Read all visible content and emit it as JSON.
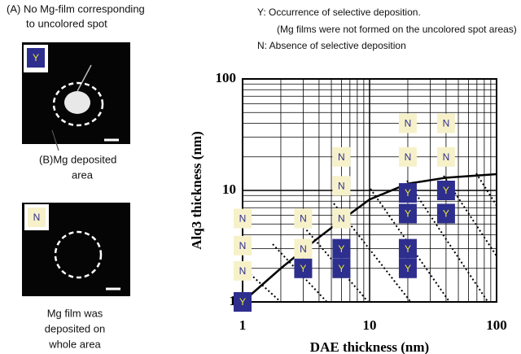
{
  "panel_a": {
    "lines": [
      "(A) No Mg-film corresponding",
      "to uncolored spot"
    ],
    "badge": "Y",
    "arrow_label": [
      "(B)Mg deposited",
      "area"
    ]
  },
  "panel_b": {
    "badge": "N",
    "caption": [
      "Mg film was",
      "deposited on",
      "whole area"
    ]
  },
  "legend_notes": [
    "Y: Occurrence of selective deposition.",
    "(Mg films were not formed on the uncolored spot areas)",
    "N: Absence of selective deposition"
  ],
  "chart_data": {
    "type": "scatter",
    "x_label": "DAE thickness (nm)",
    "y_label": "Alq3 thickness (nm)",
    "log_x": true,
    "log_y": true,
    "grid": true,
    "xlim": [
      1,
      100
    ],
    "ylim": [
      1,
      100
    ],
    "xticks": [
      1,
      10,
      100
    ],
    "yticks": [
      1,
      10,
      100
    ],
    "xminor": [
      2,
      3,
      4,
      5,
      6,
      7,
      8,
      9,
      20,
      30,
      40,
      50,
      60,
      70,
      80,
      90
    ],
    "yminor": [
      2,
      3,
      4,
      5,
      6,
      7,
      8,
      9,
      20,
      30,
      40,
      50,
      60,
      70,
      80,
      90
    ],
    "series": [
      {
        "name": "Y",
        "color": "#2e2e8e",
        "text_color": "#e6e63a",
        "x": [
          1,
          3,
          6,
          6,
          20,
          20,
          20,
          20,
          40,
          40
        ],
        "values": [
          1,
          2,
          2,
          3,
          2,
          3,
          6.2,
          9.5,
          6.2,
          10
        ]
      },
      {
        "name": "N",
        "color": "#f6f1c9",
        "text_color": "#2e2e8e",
        "x": [
          1,
          1,
          1,
          3,
          3,
          6,
          6,
          6,
          20,
          20,
          40,
          40
        ],
        "values": [
          1.9,
          3.2,
          5.6,
          3,
          5.6,
          5.6,
          11,
          20,
          20,
          40,
          20,
          40
        ]
      }
    ],
    "curve": {
      "color": "#000000",
      "x": [
        1,
        2,
        4,
        6,
        10,
        20,
        40,
        100
      ],
      "values": [
        1,
        2,
        3.8,
        5.4,
        8.3,
        11.5,
        13,
        14
      ]
    }
  }
}
